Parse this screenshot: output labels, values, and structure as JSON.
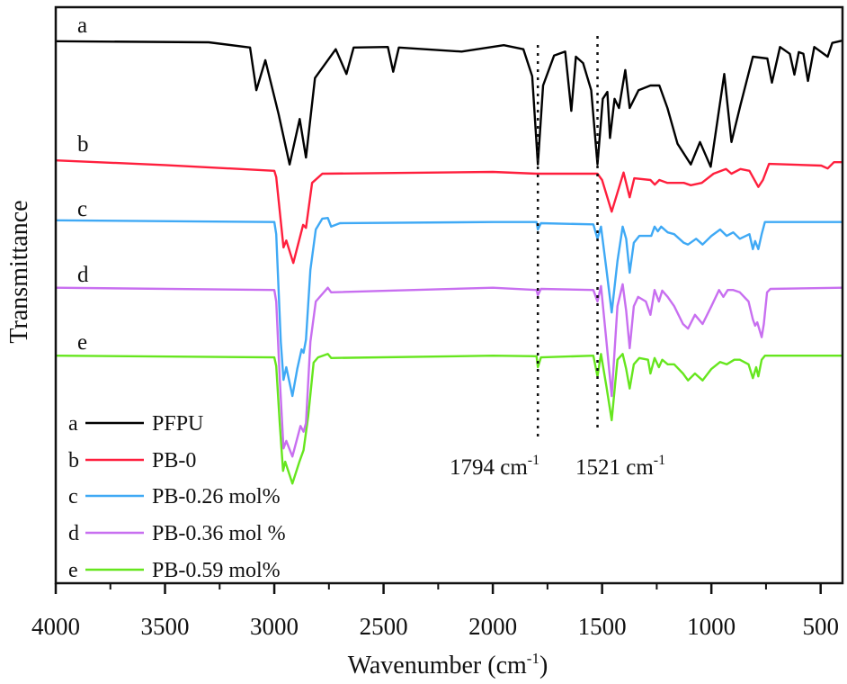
{
  "chart_data": {
    "type": "line",
    "title": "",
    "xlabel": "Wavenumber (cm",
    "xlabel_sup": "-1",
    "xlabel_end": ")",
    "ylabel": "Transmittance",
    "xlim": [
      4000,
      400
    ],
    "ylim": [
      0,
      100
    ],
    "x_reversed": true,
    "y_ticks_shown": false,
    "grid": false,
    "x_ticks": [
      4000,
      3500,
      3000,
      2500,
      2000,
      1500,
      1000,
      500
    ],
    "x_tick_labels": [
      "4000",
      "3500",
      "3000",
      "2500",
      "2000",
      "1500",
      "1000",
      "500"
    ],
    "x_minor_ticks": [
      3750,
      3250,
      2750,
      2250,
      1750,
      1250,
      750
    ],
    "legend_position": "bottom-left",
    "annotations": [
      {
        "x": 1794,
        "text": "1794 cm",
        "sup": "-1",
        "style": "dotted-vertical-line"
      },
      {
        "x": 1521,
        "text": "1521 cm",
        "sup": "-1",
        "style": "dotted-vertical-line"
      }
    ],
    "series": [
      {
        "letter": "a",
        "name": "PFPU",
        "color": "#000000",
        "points": [
          [
            4000,
            94.1
          ],
          [
            3300,
            93.9
          ],
          [
            3111,
            93.0
          ],
          [
            3082,
            85.6
          ],
          [
            3041,
            90.8
          ],
          [
            2980,
            81.4
          ],
          [
            2930,
            72.7
          ],
          [
            2884,
            80.6
          ],
          [
            2855,
            73.9
          ],
          [
            2814,
            87.7
          ],
          [
            2719,
            92.7
          ],
          [
            2670,
            88.4
          ],
          [
            2637,
            93.0
          ],
          [
            2480,
            93.1
          ],
          [
            2456,
            88.8
          ],
          [
            2430,
            93.0
          ],
          [
            2143,
            92.3
          ],
          [
            1950,
            93.4
          ],
          [
            1860,
            92.7
          ],
          [
            1820,
            88.0
          ],
          [
            1794,
            72.7
          ],
          [
            1770,
            86.4
          ],
          [
            1720,
            91.6
          ],
          [
            1669,
            92.3
          ],
          [
            1641,
            82.0
          ],
          [
            1620,
            91.4
          ],
          [
            1587,
            90.3
          ],
          [
            1550,
            85.6
          ],
          [
            1521,
            72.7
          ],
          [
            1497,
            84.1
          ],
          [
            1476,
            85.3
          ],
          [
            1464,
            77.3
          ],
          [
            1443,
            84.1
          ],
          [
            1423,
            82.5
          ],
          [
            1394,
            89.1
          ],
          [
            1374,
            82.5
          ],
          [
            1333,
            85.6
          ],
          [
            1279,
            86.4
          ],
          [
            1238,
            86.4
          ],
          [
            1201,
            82.5
          ],
          [
            1155,
            76.3
          ],
          [
            1094,
            72.7
          ],
          [
            1052,
            76.6
          ],
          [
            1003,
            72.3
          ],
          [
            941,
            88.4
          ],
          [
            908,
            76.6
          ],
          [
            867,
            83.0
          ],
          [
            810,
            91.4
          ],
          [
            744,
            91.1
          ],
          [
            723,
            86.9
          ],
          [
            686,
            93.1
          ],
          [
            641,
            91.9
          ],
          [
            620,
            88.3
          ],
          [
            600,
            92.2
          ],
          [
            579,
            91.9
          ],
          [
            558,
            87.2
          ],
          [
            529,
            93.1
          ],
          [
            468,
            91.4
          ],
          [
            447,
            93.8
          ],
          [
            400,
            94.2
          ]
        ]
      },
      {
        "letter": "b",
        "name": "PB-0",
        "color": "#ff1f3d",
        "points": [
          [
            4000,
            73.4
          ],
          [
            3500,
            72.6
          ],
          [
            3000,
            71.6
          ],
          [
            2991,
            70.5
          ],
          [
            2958,
            58.3
          ],
          [
            2945,
            59.5
          ],
          [
            2913,
            55.6
          ],
          [
            2868,
            62.2
          ],
          [
            2855,
            61.7
          ],
          [
            2827,
            69.5
          ],
          [
            2780,
            71.1
          ],
          [
            2000,
            71.4
          ],
          [
            1800,
            71.1
          ],
          [
            1521,
            71.1
          ],
          [
            1500,
            70.0
          ],
          [
            1456,
            64.5
          ],
          [
            1402,
            71.3
          ],
          [
            1374,
            67.0
          ],
          [
            1353,
            70.3
          ],
          [
            1279,
            70.0
          ],
          [
            1259,
            69.2
          ],
          [
            1238,
            70.0
          ],
          [
            1201,
            69.5
          ],
          [
            1126,
            69.5
          ],
          [
            1094,
            69.1
          ],
          [
            1044,
            69.5
          ],
          [
            990,
            71.1
          ],
          [
            933,
            71.9
          ],
          [
            908,
            71.1
          ],
          [
            867,
            71.9
          ],
          [
            826,
            71.6
          ],
          [
            785,
            68.8
          ],
          [
            764,
            70.0
          ],
          [
            736,
            72.8
          ],
          [
            497,
            72.5
          ],
          [
            468,
            72.0
          ],
          [
            439,
            73.1
          ],
          [
            400,
            73.1
          ]
        ]
      },
      {
        "letter": "c",
        "name": "PB-0.26 mol%",
        "color": "#3fa9f5",
        "points": [
          [
            4000,
            63.0
          ],
          [
            3000,
            62.7
          ],
          [
            2991,
            60.6
          ],
          [
            2970,
            41.9
          ],
          [
            2958,
            35.3
          ],
          [
            2945,
            37.5
          ],
          [
            2917,
            32.5
          ],
          [
            2895,
            37.2
          ],
          [
            2875,
            40.6
          ],
          [
            2866,
            40.0
          ],
          [
            2855,
            42.3
          ],
          [
            2835,
            54.4
          ],
          [
            2810,
            61.4
          ],
          [
            2780,
            63.3
          ],
          [
            2755,
            63.4
          ],
          [
            2740,
            61.9
          ],
          [
            2700,
            62.5
          ],
          [
            2000,
            62.7
          ],
          [
            1800,
            62.7
          ],
          [
            1794,
            61.4
          ],
          [
            1780,
            62.5
          ],
          [
            1540,
            62.3
          ],
          [
            1521,
            59.8
          ],
          [
            1505,
            61.9
          ],
          [
            1480,
            54.4
          ],
          [
            1456,
            47.0
          ],
          [
            1430,
            55.9
          ],
          [
            1406,
            61.9
          ],
          [
            1390,
            59.8
          ],
          [
            1374,
            53.9
          ],
          [
            1355,
            59.1
          ],
          [
            1330,
            60.3
          ],
          [
            1275,
            60.3
          ],
          [
            1260,
            61.9
          ],
          [
            1245,
            61.1
          ],
          [
            1230,
            61.9
          ],
          [
            1200,
            60.9
          ],
          [
            1170,
            60.6
          ],
          [
            1126,
            59.1
          ],
          [
            1107,
            58.8
          ],
          [
            1070,
            59.8
          ],
          [
            1040,
            58.8
          ],
          [
            1000,
            60.3
          ],
          [
            960,
            61.4
          ],
          [
            930,
            60.3
          ],
          [
            900,
            60.9
          ],
          [
            870,
            59.8
          ],
          [
            826,
            60.6
          ],
          [
            810,
            58.0
          ],
          [
            800,
            59.4
          ],
          [
            785,
            58.0
          ],
          [
            770,
            60.6
          ],
          [
            755,
            62.7
          ],
          [
            400,
            62.7
          ]
        ]
      },
      {
        "letter": "d",
        "name": "PB-0.36 mol %",
        "color": "#c86ff0",
        "points": [
          [
            4000,
            51.3
          ],
          [
            3000,
            50.9
          ],
          [
            2991,
            48.9
          ],
          [
            2975,
            35.6
          ],
          [
            2958,
            23.4
          ],
          [
            2945,
            24.7
          ],
          [
            2917,
            22.0
          ],
          [
            2880,
            27.3
          ],
          [
            2866,
            26.3
          ],
          [
            2855,
            27.8
          ],
          [
            2835,
            41.9
          ],
          [
            2810,
            48.9
          ],
          [
            2755,
            51.3
          ],
          [
            2740,
            50.5
          ],
          [
            2000,
            51.3
          ],
          [
            1800,
            50.9
          ],
          [
            1794,
            50.0
          ],
          [
            1780,
            51.1
          ],
          [
            1540,
            50.9
          ],
          [
            1521,
            48.9
          ],
          [
            1505,
            51.6
          ],
          [
            1480,
            41.9
          ],
          [
            1456,
            32.5
          ],
          [
            1430,
            48.1
          ],
          [
            1406,
            51.9
          ],
          [
            1390,
            47.3
          ],
          [
            1374,
            40.8
          ],
          [
            1355,
            48.1
          ],
          [
            1335,
            49.7
          ],
          [
            1300,
            48.9
          ],
          [
            1279,
            46.6
          ],
          [
            1260,
            50.9
          ],
          [
            1240,
            48.9
          ],
          [
            1225,
            50.8
          ],
          [
            1200,
            49.7
          ],
          [
            1170,
            48.1
          ],
          [
            1130,
            45.0
          ],
          [
            1107,
            44.2
          ],
          [
            1075,
            46.6
          ],
          [
            1040,
            45.0
          ],
          [
            1000,
            48.1
          ],
          [
            965,
            50.9
          ],
          [
            945,
            49.7
          ],
          [
            925,
            50.9
          ],
          [
            900,
            50.9
          ],
          [
            870,
            50.5
          ],
          [
            830,
            48.9
          ],
          [
            810,
            45.8
          ],
          [
            800,
            44.7
          ],
          [
            790,
            45.3
          ],
          [
            770,
            42.7
          ],
          [
            760,
            45.0
          ],
          [
            745,
            50.5
          ],
          [
            730,
            51.1
          ],
          [
            400,
            51.3
          ]
        ]
      },
      {
        "letter": "e",
        "name": "PB-0.59 mol%",
        "color": "#66e61e",
        "points": [
          [
            4000,
            39.5
          ],
          [
            3000,
            39.2
          ],
          [
            2991,
            37.7
          ],
          [
            2975,
            27.8
          ],
          [
            2960,
            19.5
          ],
          [
            2950,
            21.1
          ],
          [
            2917,
            17.3
          ],
          [
            2885,
            21.1
          ],
          [
            2866,
            23.1
          ],
          [
            2845,
            28.9
          ],
          [
            2820,
            38.3
          ],
          [
            2800,
            39.2
          ],
          [
            2755,
            39.8
          ],
          [
            2740,
            39.1
          ],
          [
            2000,
            39.5
          ],
          [
            1800,
            39.4
          ],
          [
            1794,
            37.5
          ],
          [
            1780,
            39.2
          ],
          [
            1540,
            39.5
          ],
          [
            1521,
            35.9
          ],
          [
            1505,
            39.8
          ],
          [
            1480,
            34.1
          ],
          [
            1456,
            28.3
          ],
          [
            1430,
            38.8
          ],
          [
            1406,
            39.8
          ],
          [
            1390,
            37.2
          ],
          [
            1374,
            33.8
          ],
          [
            1355,
            38.0
          ],
          [
            1330,
            39.1
          ],
          [
            1290,
            38.8
          ],
          [
            1279,
            36.4
          ],
          [
            1260,
            39.1
          ],
          [
            1240,
            37.5
          ],
          [
            1225,
            38.8
          ],
          [
            1200,
            38.0
          ],
          [
            1170,
            38.0
          ],
          [
            1130,
            36.4
          ],
          [
            1107,
            35.2
          ],
          [
            1075,
            36.4
          ],
          [
            1040,
            35.2
          ],
          [
            1000,
            37.2
          ],
          [
            960,
            38.4
          ],
          [
            930,
            38.0
          ],
          [
            895,
            38.8
          ],
          [
            870,
            38.8
          ],
          [
            830,
            38.0
          ],
          [
            810,
            35.6
          ],
          [
            795,
            37.5
          ],
          [
            785,
            35.9
          ],
          [
            770,
            38.8
          ],
          [
            755,
            39.5
          ],
          [
            400,
            39.5
          ]
        ]
      }
    ]
  }
}
